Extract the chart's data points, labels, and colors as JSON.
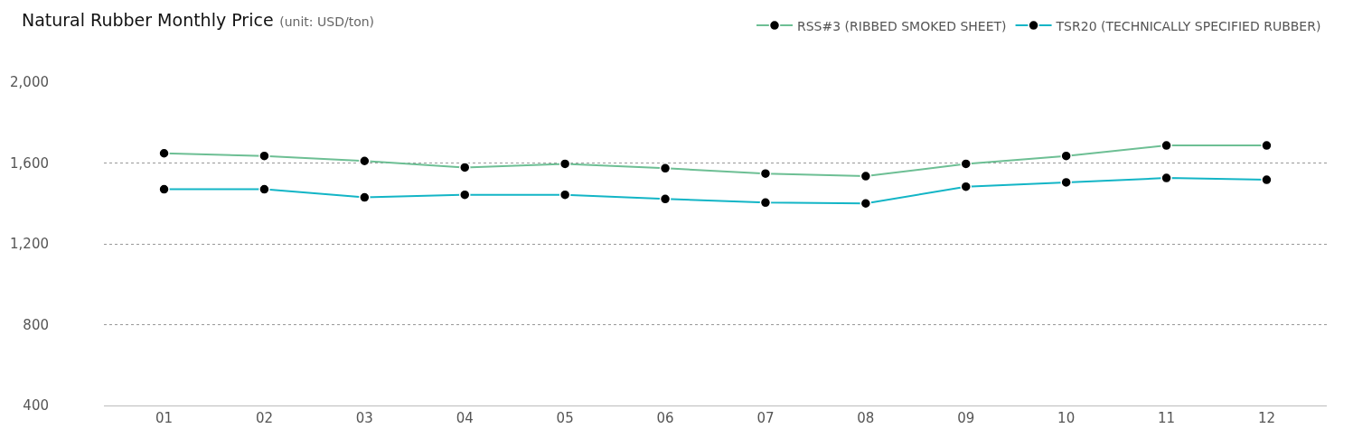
{
  "chart_data": {
    "type": "line",
    "title": "Natural Rubber Monthly Price",
    "subtitle": "(unit: USD/ton)",
    "categories": [
      "01",
      "02",
      "03",
      "04",
      "05",
      "06",
      "07",
      "08",
      "09",
      "10",
      "11",
      "12"
    ],
    "series": [
      {
        "name": "RSS#3 (RIBBED SMOKED SHEET)",
        "color": "#6dbf94",
        "values": [
          1648,
          1635,
          1610,
          1578,
          1596,
          1574,
          1548,
          1535,
          1596,
          1635,
          1687,
          1687
        ]
      },
      {
        "name": "TSR20 (TECHNICALLY SPECIFIED RUBBER)",
        "color": "#13b5c6",
        "values": [
          1470,
          1470,
          1430,
          1443,
          1443,
          1422,
          1404,
          1400,
          1483,
          1504,
          1526,
          1517
        ]
      }
    ],
    "ylim": [
      400,
      2000
    ],
    "yticks": [
      {
        "value": 400,
        "label": "400"
      },
      {
        "value": 800,
        "label": "800"
      },
      {
        "value": 1200,
        "label": "1,200"
      },
      {
        "value": 1600,
        "label": "1,600"
      },
      {
        "value": 2000,
        "label": "2,000"
      }
    ],
    "grid": "y",
    "legend": "top right",
    "marker": "circle",
    "line_style": "solid"
  }
}
